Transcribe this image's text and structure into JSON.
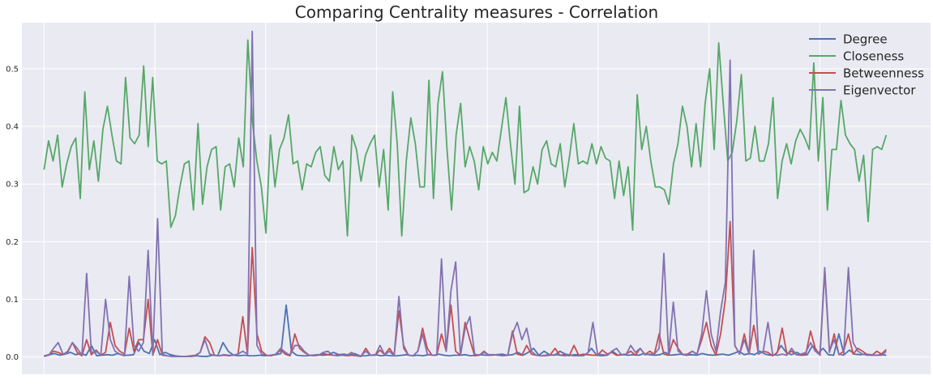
{
  "chart_data": {
    "type": "line",
    "title": "Comparing Centrality measures - Correlation",
    "xlabel": "",
    "ylabel": "",
    "ylim": [
      -0.03,
      0.58
    ],
    "xlim": [
      -4,
      160
    ],
    "yticks": [
      0.0,
      0.1,
      0.2,
      0.3,
      0.4,
      0.5
    ],
    "ytick_labels": [
      "0.0",
      "0.1",
      "0.2",
      "0.3",
      "0.4",
      "0.5"
    ],
    "xgrid": [
      0,
      20,
      40,
      60,
      80,
      100,
      120,
      140
    ],
    "grid": true,
    "legend": "top-right",
    "style": {
      "background": "#eaeaf2",
      "grid": "#ffffff"
    },
    "series": [
      {
        "name": "Degree",
        "color": "#4c72b0",
        "values": [
          0.002,
          0.004,
          0.006,
          0.003,
          0.005,
          0.008,
          0.004,
          0.006,
          0.003,
          0.02,
          0.002,
          0.003,
          0.004,
          0.003,
          0.006,
          0.003,
          0.003,
          0.004,
          0.025,
          0.01,
          0.006,
          0.03,
          0.004,
          0.008,
          0.004,
          0.002,
          0.001,
          0.001,
          0.001,
          0.002,
          0.001,
          0.001,
          0.003,
          0.002,
          0.025,
          0.01,
          0.003,
          0.002,
          0.003,
          0.002,
          0.002,
          0.003,
          0.002,
          0.003,
          0.004,
          0.006,
          0.09,
          0.01,
          0.003,
          0.002,
          0.002,
          0.003,
          0.004,
          0.003,
          0.004,
          0.008,
          0.004,
          0.005,
          0.003,
          0.006,
          0.002,
          0.002,
          0.003,
          0.004,
          0.002,
          0.003,
          0.002,
          0.002,
          0.003,
          0.004,
          0.002,
          0.003,
          0.002,
          0.004,
          0.003,
          0.005,
          0.003,
          0.002,
          0.003,
          0.003,
          0.004,
          0.002,
          0.003,
          0.004,
          0.003,
          0.003,
          0.004,
          0.005,
          0.003,
          0.004,
          0.008,
          0.003,
          0.008,
          0.015,
          0.003,
          0.01,
          0.004,
          0.003,
          0.01,
          0.005,
          0.003,
          0.004,
          0.003,
          0.004,
          0.015,
          0.003,
          0.002,
          0.003,
          0.01,
          0.003,
          0.004,
          0.003,
          0.004,
          0.003,
          0.006,
          0.004,
          0.003,
          0.004,
          0.008,
          0.003,
          0.004,
          0.005,
          0.003,
          0.004,
          0.003,
          0.006,
          0.004,
          0.003,
          0.004,
          0.005,
          0.003,
          0.006,
          0.01,
          0.004,
          0.006,
          0.004,
          0.01,
          0.005,
          0.003,
          0.004,
          0.02,
          0.008,
          0.004,
          0.008,
          0.003,
          0.004,
          0.02,
          0.006,
          0.015,
          0.004,
          0.003,
          0.04,
          0.004,
          0.012,
          0.005,
          0.004,
          0.005,
          0.004,
          0.003,
          0.004,
          0.003
        ]
      },
      {
        "name": "Closeness",
        "color": "#55a868",
        "values": [
          0.325,
          0.375,
          0.34,
          0.385,
          0.295,
          0.335,
          0.365,
          0.38,
          0.275,
          0.46,
          0.325,
          0.375,
          0.305,
          0.395,
          0.435,
          0.385,
          0.34,
          0.335,
          0.485,
          0.38,
          0.37,
          0.385,
          0.505,
          0.365,
          0.485,
          0.34,
          0.335,
          0.34,
          0.225,
          0.245,
          0.295,
          0.335,
          0.34,
          0.255,
          0.405,
          0.265,
          0.33,
          0.36,
          0.365,
          0.255,
          0.33,
          0.335,
          0.295,
          0.38,
          0.33,
          0.55,
          0.41,
          0.34,
          0.295,
          0.215,
          0.385,
          0.295,
          0.36,
          0.38,
          0.42,
          0.335,
          0.34,
          0.29,
          0.335,
          0.33,
          0.355,
          0.365,
          0.315,
          0.305,
          0.365,
          0.325,
          0.34,
          0.21,
          0.385,
          0.36,
          0.305,
          0.35,
          0.37,
          0.385,
          0.295,
          0.36,
          0.255,
          0.46,
          0.37,
          0.21,
          0.34,
          0.415,
          0.37,
          0.295,
          0.295,
          0.48,
          0.275,
          0.44,
          0.495,
          0.36,
          0.255,
          0.385,
          0.44,
          0.33,
          0.365,
          0.34,
          0.29,
          0.365,
          0.335,
          0.355,
          0.34,
          0.395,
          0.45,
          0.37,
          0.3,
          0.435,
          0.285,
          0.29,
          0.33,
          0.3,
          0.36,
          0.375,
          0.335,
          0.33,
          0.37,
          0.295,
          0.345,
          0.405,
          0.335,
          0.34,
          0.335,
          0.37,
          0.335,
          0.365,
          0.345,
          0.34,
          0.275,
          0.34,
          0.28,
          0.33,
          0.22,
          0.455,
          0.36,
          0.4,
          0.34,
          0.295,
          0.295,
          0.29,
          0.265,
          0.335,
          0.37,
          0.435,
          0.4,
          0.33,
          0.405,
          0.33,
          0.44,
          0.5,
          0.36,
          0.545,
          0.44,
          0.34,
          0.355,
          0.41,
          0.49,
          0.34,
          0.345,
          0.4,
          0.34,
          0.34,
          0.37,
          0.45,
          0.275,
          0.34,
          0.37,
          0.335,
          0.375,
          0.395,
          0.38,
          0.36,
          0.51,
          0.34,
          0.45,
          0.255,
          0.36,
          0.36,
          0.445,
          0.385,
          0.37,
          0.36,
          0.305,
          0.35,
          0.235,
          0.36,
          0.365,
          0.36,
          0.385
        ]
      },
      {
        "name": "Betweenness",
        "color": "#c44e52",
        "values": [
          0.001,
          0.004,
          0.01,
          0.008,
          0.004,
          0.01,
          0.025,
          0.008,
          0.002,
          0.03,
          0.004,
          0.012,
          0.003,
          0.008,
          0.06,
          0.02,
          0.01,
          0.005,
          0.05,
          0.01,
          0.03,
          0.03,
          0.1,
          0.003,
          0.03,
          0.003,
          0.002,
          0.001,
          0.001,
          0.001,
          0.001,
          0.002,
          0.003,
          0.008,
          0.035,
          0.025,
          0.003,
          0.002,
          0.003,
          0.002,
          0.003,
          0.005,
          0.07,
          0.005,
          0.19,
          0.04,
          0.01,
          0.003,
          0.002,
          0.005,
          0.012,
          0.005,
          0.002,
          0.04,
          0.015,
          0.008,
          0.003,
          0.003,
          0.003,
          0.006,
          0.004,
          0.003,
          0.003,
          0.003,
          0.002,
          0.003,
          0.002,
          0.001,
          0.015,
          0.003,
          0.003,
          0.012,
          0.004,
          0.015,
          0.003,
          0.08,
          0.02,
          0.003,
          0.002,
          0.01,
          0.05,
          0.015,
          0.003,
          0.003,
          0.04,
          0.01,
          0.09,
          0.01,
          0.003,
          0.06,
          0.03,
          0.002,
          0.003,
          0.01,
          0.003,
          0.004,
          0.003,
          0.002,
          0.003,
          0.045,
          0.005,
          0.003,
          0.02,
          0.005,
          0.003,
          0.002,
          0.003,
          0.004,
          0.015,
          0.003,
          0.004,
          0.002,
          0.02,
          0.003,
          0.005,
          0.004,
          0.003,
          0.003,
          0.012,
          0.005,
          0.008,
          0.003,
          0.004,
          0.005,
          0.01,
          0.003,
          0.015,
          0.004,
          0.01,
          0.005,
          0.04,
          0.005,
          0.003,
          0.03,
          0.015,
          0.004,
          0.005,
          0.01,
          0.005,
          0.03,
          0.06,
          0.02,
          0.003,
          0.04,
          0.1,
          0.235,
          0.02,
          0.005,
          0.04,
          0.005,
          0.055,
          0.005,
          0.01,
          0.008,
          0.002,
          0.008,
          0.05,
          0.005,
          0.01,
          0.004,
          0.003,
          0.005,
          0.045,
          0.015,
          0.003,
          0.15,
          0.008,
          0.04,
          0.004,
          0.01,
          0.04,
          0.005,
          0.015,
          0.01,
          0.004,
          0.003,
          0.01,
          0.005,
          0.013
        ]
      },
      {
        "name": "Eigenvector",
        "color": "#8172b2",
        "values": [
          0.001,
          0.003,
          0.015,
          0.025,
          0.005,
          0.008,
          0.025,
          0.015,
          0.003,
          0.145,
          0.008,
          0.01,
          0.003,
          0.1,
          0.03,
          0.01,
          0.005,
          0.002,
          0.14,
          0.02,
          0.01,
          0.025,
          0.185,
          0.003,
          0.24,
          0.005,
          0.002,
          0.001,
          0.001,
          0.001,
          0.001,
          0.001,
          0.002,
          0.008,
          0.03,
          0.005,
          0.003,
          0.002,
          0.004,
          0.003,
          0.003,
          0.005,
          0.01,
          0.005,
          0.565,
          0.02,
          0.005,
          0.002,
          0.003,
          0.005,
          0.015,
          0.008,
          0.003,
          0.02,
          0.02,
          0.01,
          0.003,
          0.002,
          0.003,
          0.008,
          0.01,
          0.003,
          0.002,
          0.003,
          0.003,
          0.008,
          0.002,
          0.002,
          0.01,
          0.003,
          0.003,
          0.02,
          0.004,
          0.01,
          0.002,
          0.105,
          0.015,
          0.003,
          0.002,
          0.01,
          0.04,
          0.005,
          0.003,
          0.003,
          0.17,
          0.01,
          0.115,
          0.165,
          0.003,
          0.05,
          0.07,
          0.005,
          0.003,
          0.008,
          0.004,
          0.004,
          0.003,
          0.002,
          0.003,
          0.04,
          0.06,
          0.03,
          0.05,
          0.01,
          0.003,
          0.002,
          0.002,
          0.003,
          0.004,
          0.003,
          0.002,
          0.003,
          0.002,
          0.002,
          0.002,
          0.008,
          0.06,
          0.005,
          0.004,
          0.003,
          0.01,
          0.015,
          0.004,
          0.004,
          0.02,
          0.008,
          0.015,
          0.004,
          0.005,
          0.005,
          0.015,
          0.18,
          0.005,
          0.095,
          0.01,
          0.005,
          0.003,
          0.01,
          0.004,
          0.04,
          0.115,
          0.04,
          0.01,
          0.08,
          0.13,
          0.515,
          0.02,
          0.005,
          0.03,
          0.005,
          0.185,
          0.005,
          0.01,
          0.06,
          0.004,
          0.003,
          0.005,
          0.003,
          0.015,
          0.004,
          0.005,
          0.008,
          0.025,
          0.01,
          0.005,
          0.155,
          0.01,
          0.03,
          0.005,
          0.003,
          0.155,
          0.025,
          0.01,
          0.005,
          0.003,
          0.003,
          0.003,
          0.003,
          0.01
        ]
      }
    ]
  }
}
